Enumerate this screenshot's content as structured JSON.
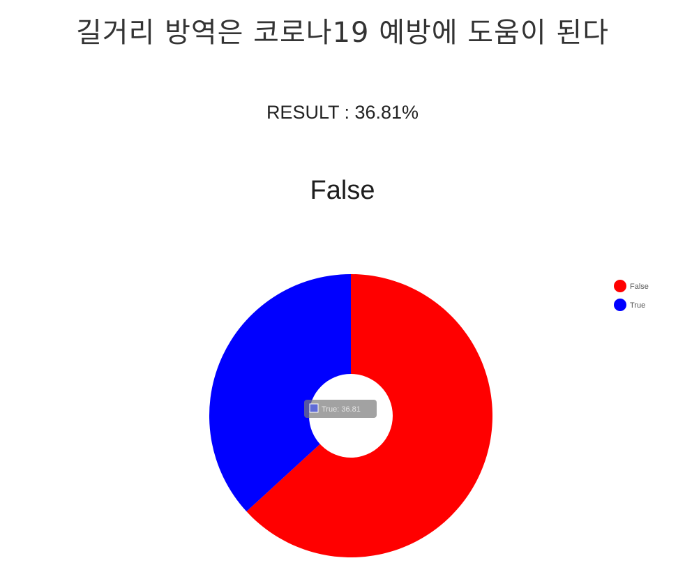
{
  "page": {
    "title": "길거리 방역은 코로나19 예방에 도움이 된다",
    "result_label": "RESULT : 36.81%",
    "verdict": "False"
  },
  "chart_data": {
    "type": "pie",
    "donut": true,
    "categories": [
      "False",
      "True"
    ],
    "values": [
      63.19,
      36.81
    ],
    "colors": [
      "#ff0000",
      "#0000ff"
    ],
    "legend": [
      "False",
      "True"
    ],
    "legend_position": "top-right",
    "tooltip": "True: 36.81"
  }
}
